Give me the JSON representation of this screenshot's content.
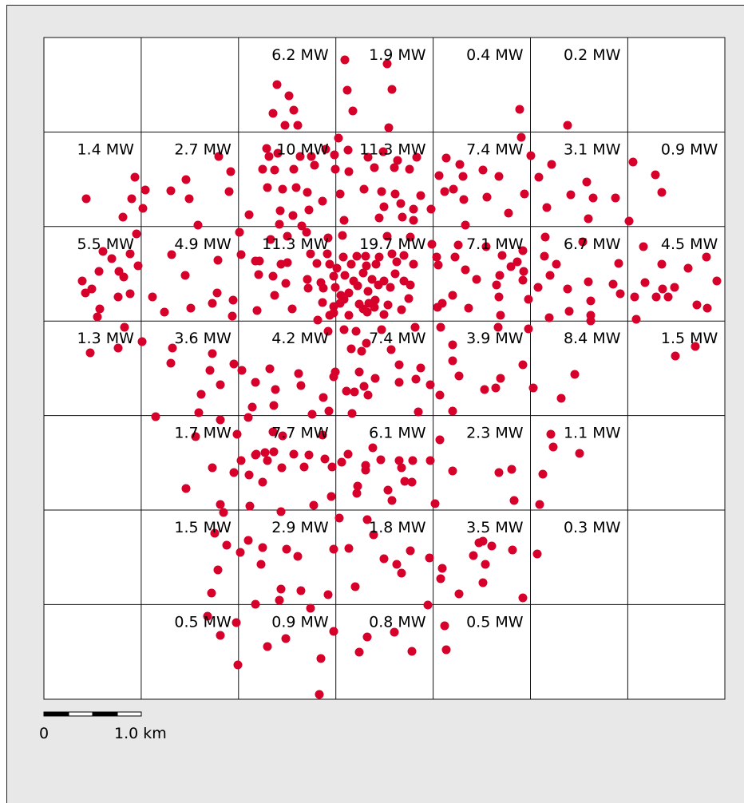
{
  "grid": {
    "rows": [
      [
        "",
        "",
        "6.2 MW",
        "1.9 MW",
        "0.4 MW",
        "0.2 MW",
        ""
      ],
      [
        "1.4 MW",
        "2.7 MW",
        "10 MW",
        "11.3 MW",
        "7.4 MW",
        "3.1 MW",
        "0.9 MW"
      ],
      [
        "5.5 MW",
        "4.9 MW",
        "11.3 MW",
        "19.7 MW",
        "7.1 MW",
        "6.7 MW",
        "4.5 MW"
      ],
      [
        "1.3 MW",
        "3.6 MW",
        "4.2 MW",
        "7.4 MW",
        "3.9 MW",
        "8.4 MW",
        "1.5 MW"
      ],
      [
        "",
        "1.7 MW",
        "7.7 MW",
        "6.1 MW",
        "2.3 MW",
        "1.1 MW",
        ""
      ],
      [
        "",
        "1.5 MW",
        "2.9 MW",
        "1.8 MW",
        "3.5 MW",
        "0.3 MW",
        ""
      ],
      [
        "",
        "0.5 MW",
        "0.9 MW",
        "0.8 MW",
        "0.5 MW",
        "",
        ""
      ]
    ]
  },
  "scale_bar": {
    "start_label": "0",
    "end_label": "1.0 km"
  },
  "colors": {
    "point": "#d6002a",
    "frame_background": "#e8e8e8",
    "grid_line": "#111111"
  }
}
